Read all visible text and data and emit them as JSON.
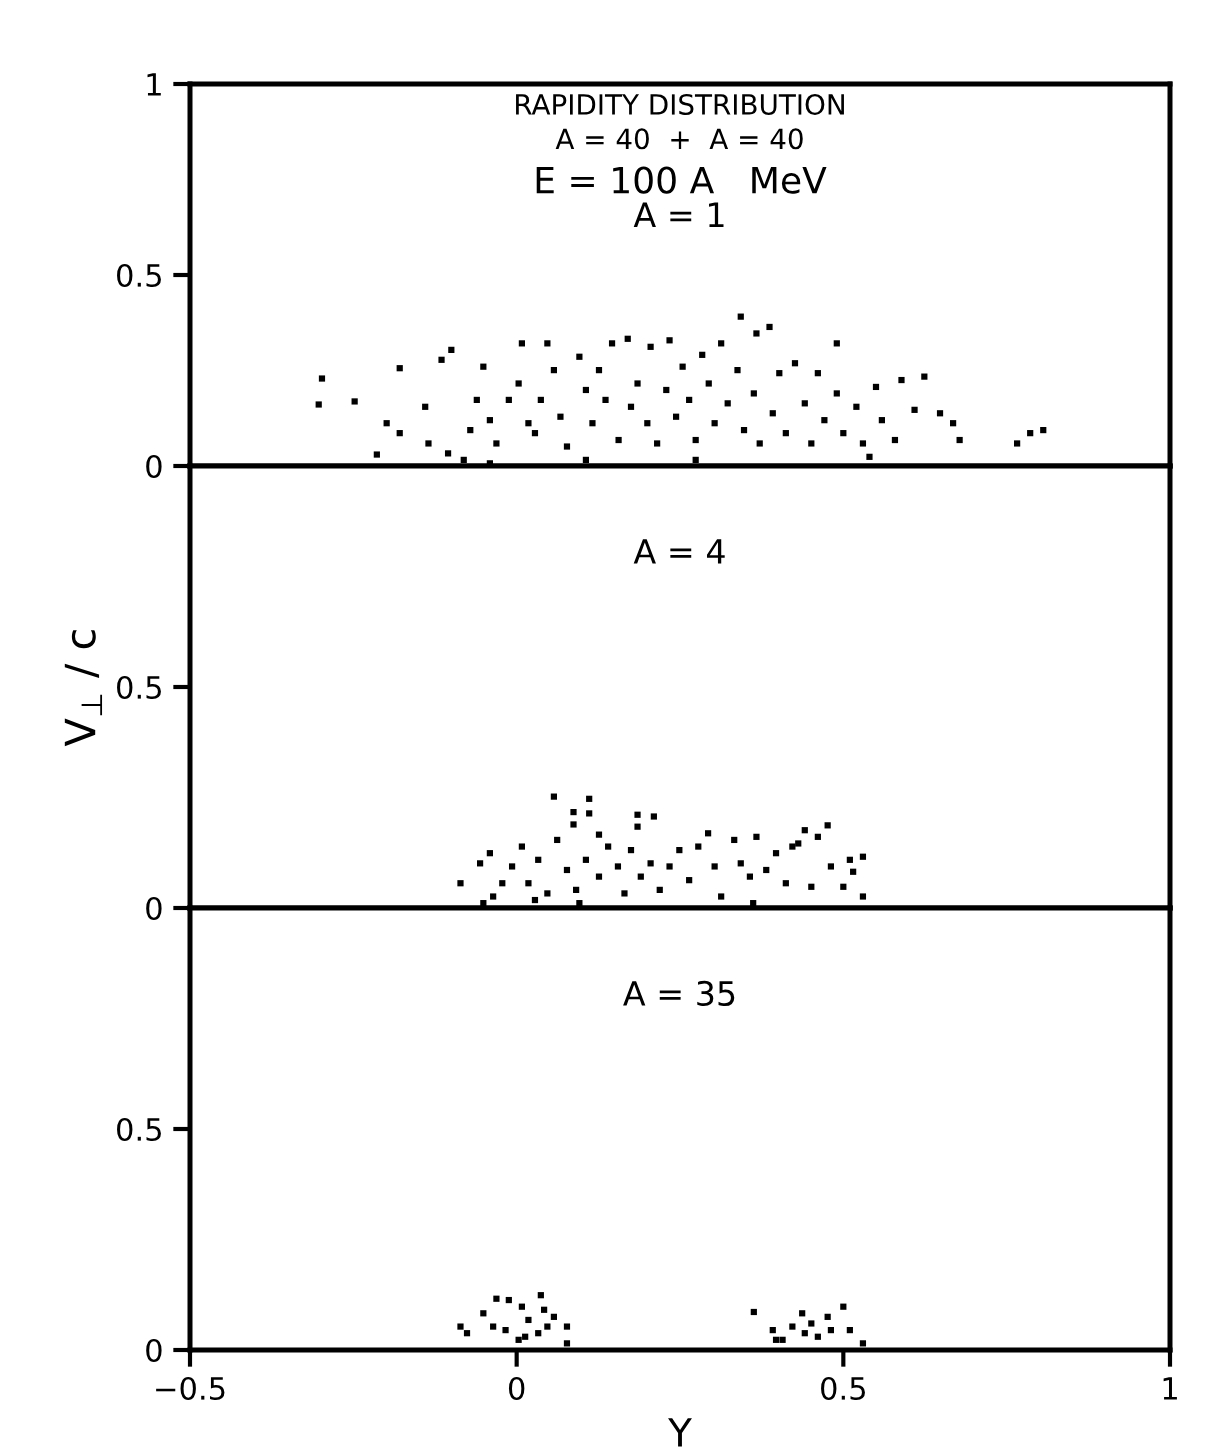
{
  "chart_data": [
    {
      "type": "scatter",
      "title": "RAPIDITY DISTRIBUTION",
      "subtitle": "A = 40  +  A = 40",
      "annotations": [
        "E = 100 A   MeV",
        "A = 1"
      ],
      "color": "#000000",
      "marker": "square",
      "xlim": [
        -0.5,
        1
      ],
      "xticks": [
        -0.5,
        0,
        0.5,
        1
      ],
      "ylim": [
        0,
        1
      ],
      "yticks": [
        0,
        0.5,
        1
      ],
      "tick_labels": "y",
      "grid": false,
      "legend": false,
      "x": [
        -0.298,
        -0.303,
        -0.248,
        -0.214,
        -0.199,
        -0.179,
        -0.179,
        -0.14,
        -0.135,
        -0.115,
        -0.1,
        -0.105,
        -0.071,
        -0.061,
        -0.051,
        -0.041,
        -0.031,
        -0.012,
        0.003,
        0.008,
        0.018,
        0.028,
        0.037,
        0.047,
        0.057,
        0.067,
        0.077,
        0.096,
        0.106,
        0.116,
        0.126,
        0.136,
        0.146,
        0.156,
        0.17,
        0.175,
        0.185,
        0.2,
        0.205,
        0.215,
        0.229,
        0.234,
        0.244,
        0.254,
        0.264,
        0.274,
        0.284,
        0.294,
        0.303,
        0.313,
        0.323,
        0.338,
        0.343,
        0.348,
        0.363,
        0.367,
        0.372,
        0.387,
        0.392,
        0.402,
        0.412,
        0.426,
        0.441,
        0.451,
        0.461,
        0.471,
        0.49,
        0.49,
        0.5,
        0.52,
        0.53,
        0.55,
        0.559,
        0.579,
        0.589,
        0.609,
        0.624,
        0.648,
        0.668,
        0.678,
        0.766,
        0.786,
        0.806,
        -0.081,
        0.106,
        0.274,
        0.54,
        -0.041
      ],
      "values": [
        0.229,
        0.161,
        0.169,
        0.03,
        0.112,
        0.256,
        0.086,
        0.155,
        0.059,
        0.278,
        0.304,
        0.033,
        0.094,
        0.173,
        0.26,
        0.12,
        0.059,
        0.173,
        0.216,
        0.321,
        0.112,
        0.086,
        0.173,
        0.321,
        0.251,
        0.129,
        0.051,
        0.286,
        0.199,
        0.112,
        0.251,
        0.173,
        0.321,
        0.068,
        0.333,
        0.155,
        0.216,
        0.112,
        0.312,
        0.059,
        0.199,
        0.329,
        0.129,
        0.26,
        0.173,
        0.068,
        0.291,
        0.216,
        0.112,
        0.321,
        0.164,
        0.251,
        0.391,
        0.094,
        0.19,
        0.347,
        0.059,
        0.364,
        0.138,
        0.243,
        0.086,
        0.269,
        0.164,
        0.059,
        0.243,
        0.12,
        0.321,
        0.19,
        0.086,
        0.155,
        0.059,
        0.207,
        0.12,
        0.068,
        0.225,
        0.147,
        0.234,
        0.138,
        0.112,
        0.068,
        0.059,
        0.086,
        0.094,
        0.016,
        0.016,
        0.016,
        0.024,
        0.007
      ]
    },
    {
      "type": "scatter",
      "annotations": [
        "A = 4"
      ],
      "ylabel": "V$_{⊥}$ / c",
      "color": "#000000",
      "marker": "square",
      "xlim": [
        -0.5,
        1
      ],
      "xticks": [
        -0.5,
        0,
        0.5,
        1
      ],
      "ylim": [
        0,
        1
      ],
      "yticks": [
        0,
        0.5
      ],
      "tick_labels": "y",
      "grid": false,
      "legend": false,
      "x": [
        0.057,
        0.111,
        0.087,
        0.111,
        0.087,
        0.185,
        0.21,
        0.185,
        0.126,
        -0.086,
        -0.056,
        -0.041,
        -0.036,
        -0.007,
        0.008,
        0.018,
        0.033,
        0.047,
        0.062,
        0.077,
        0.091,
        0.106,
        0.126,
        0.14,
        0.155,
        0.165,
        0.175,
        0.19,
        0.205,
        0.219,
        0.234,
        0.249,
        0.264,
        0.278,
        0.293,
        0.303,
        0.313,
        0.333,
        0.343,
        0.357,
        0.367,
        0.382,
        0.397,
        0.412,
        0.422,
        0.431,
        0.441,
        0.451,
        0.461,
        0.476,
        0.481,
        0.5,
        0.51,
        0.53,
        0.53,
        0.515,
        -0.022,
        0.028,
        0.096,
        0.362,
        -0.051
      ],
      "values": [
        0.252,
        0.247,
        0.217,
        0.214,
        0.189,
        0.211,
        0.207,
        0.184,
        0.166,
        0.056,
        0.101,
        0.124,
        0.026,
        0.094,
        0.139,
        0.056,
        0.109,
        0.033,
        0.154,
        0.086,
        0.041,
        0.109,
        0.071,
        0.139,
        0.094,
        0.033,
        0.131,
        0.071,
        0.101,
        0.041,
        0.094,
        0.131,
        0.063,
        0.139,
        0.169,
        0.094,
        0.026,
        0.154,
        0.101,
        0.071,
        0.161,
        0.086,
        0.124,
        0.056,
        0.139,
        0.146,
        0.176,
        0.048,
        0.161,
        0.187,
        0.094,
        0.048,
        0.109,
        0.116,
        0.026,
        0.082,
        0.056,
        0.018,
        0.011,
        0.011,
        0.011
      ]
    },
    {
      "type": "scatter",
      "annotations": [
        "A = 35"
      ],
      "xlabel": "Y",
      "color": "#000000",
      "marker": "square",
      "xlim": [
        -0.5,
        1
      ],
      "xticks": [
        -0.5,
        0,
        0.5,
        1
      ],
      "ylim": [
        0,
        1
      ],
      "yticks": [
        0,
        0.5
      ],
      "grid": false,
      "legend": false,
      "x": [
        -0.086,
        -0.076,
        -0.051,
        -0.031,
        -0.012,
        -0.036,
        -0.017,
        0.008,
        0.013,
        0.018,
        0.037,
        0.042,
        0.047,
        0.057,
        0.033,
        0.003,
        0.077,
        0.077,
        0.363,
        0.392,
        0.407,
        0.422,
        0.437,
        0.441,
        0.451,
        0.461,
        0.476,
        0.481,
        0.5,
        0.51,
        0.53,
        0.397
      ],
      "values": [
        0.053,
        0.038,
        0.083,
        0.116,
        0.113,
        0.053,
        0.045,
        0.098,
        0.03,
        0.068,
        0.124,
        0.091,
        0.053,
        0.075,
        0.038,
        0.023,
        0.053,
        0.015,
        0.086,
        0.045,
        0.023,
        0.053,
        0.083,
        0.038,
        0.06,
        0.03,
        0.075,
        0.045,
        0.098,
        0.045,
        0.015,
        0.023
      ]
    }
  ]
}
